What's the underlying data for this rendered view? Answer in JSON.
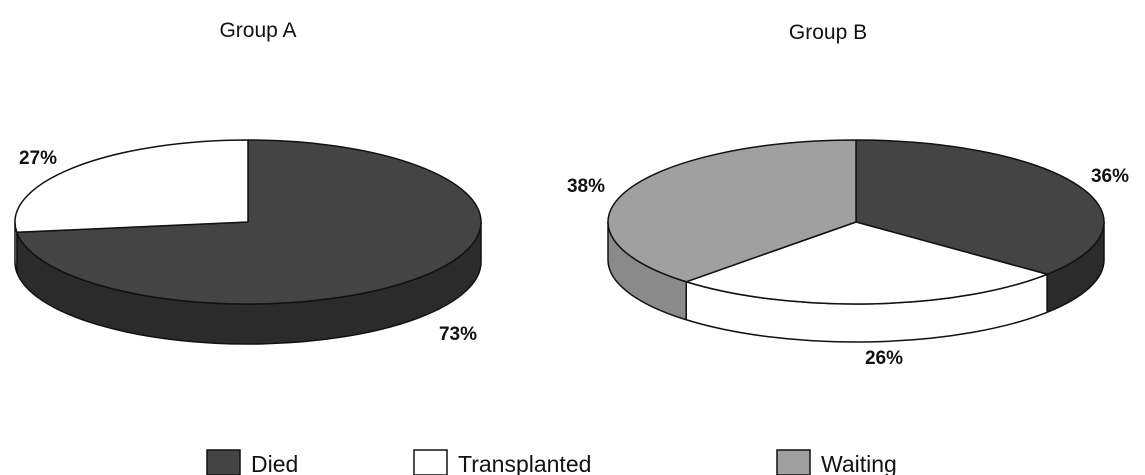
{
  "chart_data": [
    {
      "type": "pie",
      "title": "Group A",
      "slices": [
        {
          "category": "Died",
          "value": 73,
          "label": "73%"
        },
        {
          "category": "Transplanted",
          "value": 27,
          "label": "27%"
        }
      ]
    },
    {
      "type": "pie",
      "title": "Group B",
      "slices": [
        {
          "category": "Died",
          "value": 36,
          "label": "36%"
        },
        {
          "category": "Transplanted",
          "value": 26,
          "label": "26%"
        },
        {
          "category": "Waiting",
          "value": 38,
          "label": "38%"
        }
      ]
    }
  ],
  "legend": {
    "placement": "bottom",
    "entries": [
      {
        "label": "Died",
        "color": "#444444"
      },
      {
        "label": "Transplanted",
        "color": "#ffffff"
      },
      {
        "label": "Waiting",
        "color": "#a0a0a0"
      }
    ]
  },
  "style": {
    "three_d": true,
    "outline_color": "#111111",
    "side_shade": {
      "Died": "#2b2b2b",
      "Transplanted": "#ffffff",
      "Waiting": "#8a8a8a"
    }
  }
}
